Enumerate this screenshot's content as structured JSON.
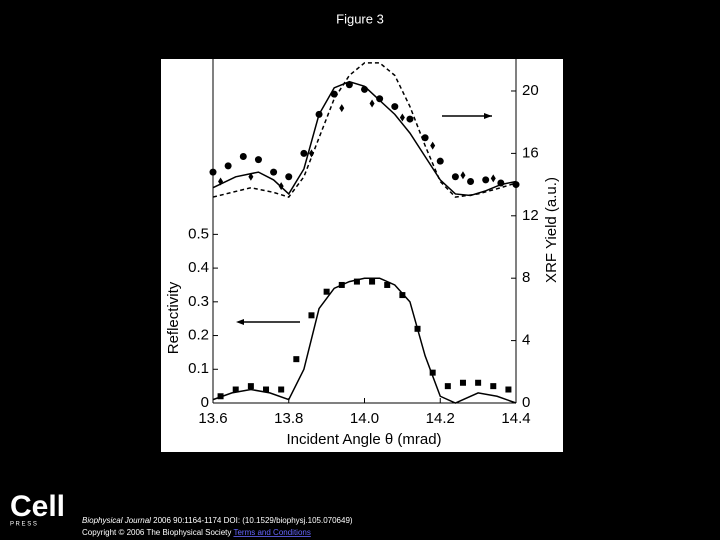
{
  "slide_title": "Figure 3",
  "chart_data": {
    "type": "line",
    "xlabel": "Incident Angle θ (mrad)",
    "ylabel": "Reflectivity",
    "y2label": "XRF Yield (a.u.)",
    "xlim": [
      13.6,
      14.4
    ],
    "xticks": [
      13.6,
      13.8,
      {
        "value": 14,
        "label": "14.0"
      },
      14.2,
      14.4
    ],
    "ylim": [
      0,
      1.02
    ],
    "yticks": [
      0,
      0.1,
      0.2,
      0.3,
      0.4,
      0.5
    ],
    "y2lim": [
      0,
      22.05
    ],
    "y2ticks": [
      0,
      4,
      8,
      12,
      16,
      20
    ],
    "grid": false,
    "series": [
      {
        "color": "#000000",
        "marker": "square",
        "x": [
          13.62,
          13.66,
          13.7,
          13.74,
          13.78,
          13.82,
          13.86,
          13.9,
          13.94,
          13.98,
          14.02,
          14.06,
          14.1,
          14.14,
          14.18,
          14.22,
          14.26,
          14.3,
          14.34,
          14.38
        ],
        "values": [
          0.02,
          0.04,
          0.05,
          0.04,
          0.04,
          0.13,
          0.26,
          0.33,
          0.35,
          0.36,
          0.36,
          0.35,
          0.32,
          0.22,
          0.09,
          0.05,
          0.06,
          0.06,
          0.05,
          0.04
        ]
      },
      {
        "color": "#000000",
        "line": "solid",
        "x": [
          13.6,
          13.65,
          13.7,
          13.75,
          13.8,
          13.84,
          13.88,
          13.92,
          13.96,
          14.0,
          14.04,
          14.08,
          14.12,
          14.16,
          14.2,
          14.24,
          14.3,
          14.35,
          14.4
        ],
        "values": [
          0.01,
          0.03,
          0.04,
          0.03,
          0.01,
          0.1,
          0.28,
          0.34,
          0.36,
          0.37,
          0.37,
          0.35,
          0.3,
          0.14,
          0.02,
          0,
          0.03,
          0.02,
          0
        ]
      },
      {
        "color": "#000000",
        "marker": "circle",
        "axis": "y2",
        "x": [
          13.6,
          13.64,
          13.68,
          13.72,
          13.76,
          13.8,
          13.84,
          13.88,
          13.92,
          13.96,
          14.0,
          14.04,
          14.08,
          14.12,
          14.16,
          14.2,
          14.24,
          14.28,
          14.32,
          14.36,
          14.4
        ],
        "values": [
          14.8,
          15.2,
          15.8,
          15.6,
          14.8,
          14.5,
          16,
          18.5,
          19.8,
          20.4,
          20.1,
          19.5,
          19,
          18.2,
          17,
          15.5,
          14.5,
          14.2,
          14.3,
          14.1,
          14
        ]
      },
      {
        "color": "#000000",
        "marker": "diamond",
        "axis": "y2",
        "x": [
          13.62,
          13.7,
          13.78,
          13.86,
          13.94,
          14.02,
          14.1,
          14.18,
          14.26,
          14.34
        ],
        "values": [
          14.2,
          14.5,
          13.9,
          16,
          18.9,
          19.2,
          18.3,
          16.5,
          14.6,
          14.4
        ]
      },
      {
        "color": "#000000",
        "line": "solid",
        "axis": "y2",
        "x": [
          13.6,
          13.66,
          13.72,
          13.76,
          13.8,
          13.84,
          13.88,
          13.92,
          13.96,
          14.0,
          14.04,
          14.08,
          14.12,
          14.16,
          14.2,
          14.24,
          14.28,
          14.32,
          14.36,
          14.4
        ],
        "values": [
          13.8,
          14.5,
          14.8,
          14.3,
          13.4,
          15,
          18.5,
          20.2,
          20.6,
          20.3,
          19.4,
          18.5,
          17.3,
          15.8,
          14.3,
          13.4,
          13.3,
          13.6,
          14,
          14.2
        ]
      },
      {
        "color": "#000000",
        "line": "dashed",
        "axis": "y2",
        "x": [
          13.6,
          13.7,
          13.76,
          13.8,
          13.84,
          13.88,
          13.92,
          13.96,
          14.0,
          14.04,
          14.08,
          14.12,
          14.16,
          14.2,
          14.24,
          14.3,
          14.36,
          14.4
        ],
        "values": [
          13.2,
          13.8,
          13.5,
          13.2,
          14.5,
          17,
          19.5,
          21,
          21.8,
          21.8,
          21,
          19,
          16.5,
          14.2,
          13.2,
          13.4,
          13.8,
          14.1
        ]
      }
    ]
  },
  "logo": {
    "name": "Cell",
    "sub": "P R E S S"
  },
  "citation": {
    "journal": "Biophysical Journal",
    "rest": " 2006 90:1164-1174 DOI: (10.1529/biophysj.105.070649)",
    "copyright": "Copyright © 2006 The Biophysical Society ",
    "link": "Terms and Conditions"
  }
}
